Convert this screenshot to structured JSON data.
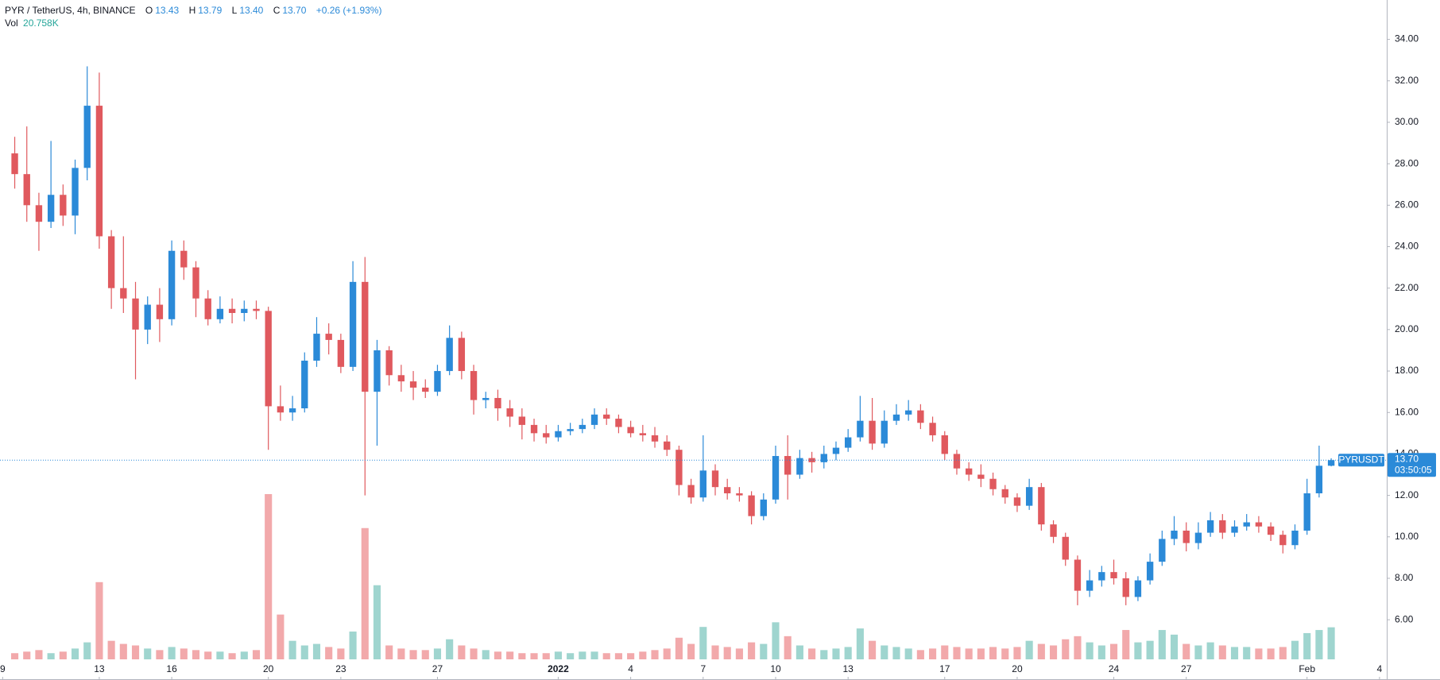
{
  "chart_data": {
    "type": "candlestick",
    "header": {
      "symbol": "PYR / TetherUS, 4h, BINANCE",
      "o_key": "O",
      "o": "13.43",
      "h_key": "H",
      "h": "13.79",
      "l_key": "L",
      "l": "13.40",
      "c_key": "C",
      "c": "13.70",
      "change": "+0.26 (+1.93%)",
      "vol_key": "Vol",
      "vol": "20.758K"
    },
    "price_label": {
      "name": "PYRUSDT",
      "price": "13.70",
      "countdown": "03:50:05"
    },
    "up_color": "#2b8ad8",
    "down_color": "#e0595e",
    "volume_up_color": "#9fd5cf",
    "volume_down_color": "#f2a9ab",
    "grid": false,
    "xlim": [
      -0.11,
      57.3
    ],
    "ylim": [
      4.09,
      35.9
    ],
    "xticks": [
      {
        "value": 0,
        "label": "9"
      },
      {
        "value": 4,
        "label": "13"
      },
      {
        "value": 7,
        "label": "16"
      },
      {
        "value": 11,
        "label": "20"
      },
      {
        "value": 14,
        "label": "23"
      },
      {
        "value": 18,
        "label": "27"
      },
      {
        "value": 23,
        "label": "2022"
      },
      {
        "value": 26,
        "label": "4"
      },
      {
        "value": 29,
        "label": "7"
      },
      {
        "value": 32,
        "label": "10"
      },
      {
        "value": 35,
        "label": "13"
      },
      {
        "value": 39,
        "label": "17"
      },
      {
        "value": 42,
        "label": "20"
      },
      {
        "value": 46,
        "label": "24"
      },
      {
        "value": 49,
        "label": "27"
      },
      {
        "value": 54,
        "label": "Feb"
      },
      {
        "value": 57,
        "label": "4"
      }
    ],
    "yticks": [
      {
        "value": 6,
        "label": "6.00"
      },
      {
        "value": 8,
        "label": "8.00"
      },
      {
        "value": 10,
        "label": "10.00"
      },
      {
        "value": 12,
        "label": "12.00"
      },
      {
        "value": 14,
        "label": "14.00"
      },
      {
        "value": 16,
        "label": "16.00"
      },
      {
        "value": 18,
        "label": "18.00"
      },
      {
        "value": 20,
        "label": "20.00"
      },
      {
        "value": 22,
        "label": "22.00"
      },
      {
        "value": 24,
        "label": "24.00"
      },
      {
        "value": 26,
        "label": "26.00"
      },
      {
        "value": 28,
        "label": "28.00"
      },
      {
        "value": 30,
        "label": "30.00"
      },
      {
        "value": 32,
        "label": "32.00"
      },
      {
        "value": 34,
        "label": "34.00"
      }
    ],
    "x": [
      0.5,
      1,
      1.5,
      2,
      2.5,
      3,
      3.5,
      4,
      4.5,
      5,
      5.5,
      6,
      6.5,
      7,
      7.5,
      8,
      8.5,
      9,
      9.5,
      10,
      10.5,
      11,
      11.5,
      12,
      12.5,
      13,
      13.5,
      14,
      14.5,
      15,
      15.5,
      16,
      16.5,
      17,
      17.5,
      18,
      18.5,
      19,
      19.5,
      20,
      20.5,
      21,
      21.5,
      22,
      22.5,
      23,
      23.5,
      24,
      24.5,
      25,
      25.5,
      26,
      26.5,
      27,
      27.5,
      28,
      28.5,
      29,
      29.5,
      30,
      30.5,
      31,
      31.5,
      32,
      32.5,
      33,
      33.5,
      34,
      34.5,
      35,
      35.5,
      36,
      36.5,
      37,
      37.5,
      38,
      38.5,
      39,
      39.5,
      40,
      40.5,
      41,
      41.5,
      42,
      42.5,
      43,
      43.5,
      44,
      44.5,
      45,
      45.5,
      46,
      46.5,
      47,
      47.5,
      48,
      48.5,
      49,
      49.5,
      50,
      50.5,
      51,
      51.5,
      52,
      52.5,
      53,
      53.5,
      54,
      54.5,
      55
    ],
    "open": [
      28.5,
      27.5,
      26,
      25.2,
      26.5,
      25.5,
      27.8,
      30.8,
      24.5,
      22,
      21.5,
      20,
      21.2,
      20.5,
      23.8,
      23,
      21.5,
      20.5,
      21,
      20.8,
      21,
      20.9,
      16.3,
      16,
      16.2,
      18.5,
      19.8,
      19.5,
      18.2,
      22.3,
      17,
      19,
      17.8,
      17.5,
      17.2,
      17,
      18,
      19.6,
      18,
      16.6,
      16.7,
      16.2,
      15.8,
      15.4,
      15,
      14.8,
      15.1,
      15.2,
      15.4,
      15.9,
      15.7,
      15.3,
      15,
      14.9,
      14.6,
      14.2,
      12.5,
      11.9,
      13.2,
      12.4,
      12.1,
      12,
      11,
      11.8,
      13.9,
      13,
      13.8,
      13.6,
      14,
      14.3,
      14.8,
      15.6,
      14.5,
      15.6,
      15.9,
      16.1,
      15.5,
      14.9,
      14,
      13.3,
      13,
      12.8,
      12.3,
      11.9,
      11.5,
      12.4,
      10.6,
      10,
      8.9,
      7.4,
      7.9,
      8.3,
      8,
      7.1,
      7.9,
      8.8,
      9.9,
      10.3,
      9.7,
      10.2,
      10.8,
      10.2,
      10.5,
      10.7,
      10.5,
      10.1,
      9.6,
      10.3,
      12.1,
      13.43
    ],
    "high": [
      29.3,
      29.8,
      26.6,
      29.1,
      27,
      28.2,
      32.7,
      32.4,
      24.8,
      24.5,
      22.3,
      21.6,
      22,
      24.3,
      24.3,
      23.3,
      21.9,
      21.6,
      21.5,
      21.4,
      21.4,
      21.1,
      17.3,
      16.8,
      18.9,
      20.6,
      20.3,
      19.8,
      23.3,
      23.5,
      19.5,
      19.2,
      18.3,
      18,
      17.6,
      18.3,
      20.2,
      19.9,
      18.3,
      17,
      17.1,
      16.6,
      16.2,
      15.7,
      15.4,
      15.4,
      15.5,
      15.7,
      16.2,
      16.2,
      15.9,
      15.6,
      15.4,
      15.3,
      14.9,
      14.4,
      12.8,
      14.9,
      13.5,
      12.8,
      12.4,
      12.2,
      12.1,
      14.4,
      14.9,
      14.2,
      14.1,
      14.4,
      14.6,
      15.2,
      16.8,
      16.7,
      16.1,
      16.4,
      16.6,
      16.4,
      15.8,
      15.1,
      14.2,
      13.6,
      13.5,
      13.1,
      12.5,
      12.1,
      12.8,
      12.6,
      10.8,
      10.2,
      9.1,
      8.4,
      8.6,
      8.9,
      8.3,
      8.1,
      9.2,
      10.3,
      11,
      10.7,
      10.7,
      11.2,
      11.1,
      10.8,
      11.1,
      11,
      10.7,
      10.3,
      10.6,
      12.8,
      14.4,
      13.79
    ],
    "low": [
      26.8,
      25.2,
      23.8,
      24.9,
      25,
      24.6,
      27.2,
      23.9,
      21,
      20.8,
      17.6,
      19.3,
      19.4,
      20.2,
      22.4,
      20.6,
      20.2,
      20.3,
      20.3,
      20.4,
      20.5,
      14.2,
      15.6,
      15.6,
      16,
      18.2,
      18.8,
      17.9,
      18,
      12,
      14.4,
      17.3,
      17,
      16.6,
      16.7,
      16.8,
      17.8,
      17.6,
      15.9,
      16.2,
      15.6,
      15.3,
      14.7,
      14.6,
      14.5,
      14.6,
      14.9,
      15,
      15.2,
      15.4,
      15,
      14.8,
      14.6,
      14.3,
      13.9,
      12,
      11.6,
      11.7,
      12,
      11.8,
      11.7,
      10.6,
      10.8,
      11.6,
      11.8,
      12.8,
      13.1,
      13.3,
      13.7,
      14.1,
      14.6,
      14.2,
      14.3,
      15.4,
      15.6,
      15.2,
      14.6,
      13.7,
      13,
      12.7,
      12.4,
      12,
      11.6,
      11.2,
      11.3,
      10.3,
      9.7,
      8.6,
      6.7,
      7.1,
      7.6,
      7.7,
      6.7,
      6.9,
      7.7,
      8.6,
      9.6,
      9.3,
      9.4,
      10,
      9.9,
      10,
      10.3,
      10.2,
      9.8,
      9.2,
      9.4,
      10.1,
      11.9,
      13.4
    ],
    "close": [
      27.5,
      26,
      25.2,
      26.5,
      25.5,
      27.8,
      30.8,
      24.5,
      22,
      21.5,
      20,
      21.2,
      20.5,
      23.8,
      23,
      21.5,
      20.5,
      21,
      20.8,
      21,
      20.9,
      16.3,
      16,
      16.2,
      18.5,
      19.8,
      19.5,
      18.2,
      22.3,
      17,
      19,
      17.8,
      17.5,
      17.2,
      17,
      18,
      19.6,
      18,
      16.6,
      16.7,
      16.2,
      15.8,
      15.4,
      15,
      14.8,
      15.1,
      15.2,
      15.4,
      15.9,
      15.7,
      15.3,
      15,
      14.9,
      14.6,
      14.2,
      12.5,
      11.9,
      13.2,
      12.4,
      12.1,
      12,
      11,
      11.8,
      13.9,
      13,
      13.8,
      13.6,
      14,
      14.3,
      14.8,
      15.6,
      14.5,
      15.6,
      15.9,
      16.1,
      15.5,
      14.9,
      14,
      13.3,
      13,
      12.8,
      12.3,
      11.9,
      11.5,
      12.4,
      10.6,
      10,
      8.9,
      7.4,
      7.9,
      8.3,
      8,
      7.1,
      7.9,
      8.8,
      9.9,
      10.3,
      9.7,
      10.2,
      10.8,
      10.2,
      10.5,
      10.7,
      10.5,
      10.1,
      9.6,
      10.3,
      12.1,
      13.43,
      13.7
    ],
    "volume": [
      4,
      5,
      6,
      4,
      5,
      7,
      11,
      50,
      12,
      10,
      9,
      7,
      6,
      8,
      7,
      6,
      5,
      5,
      4,
      5,
      6,
      107,
      29,
      12,
      9,
      10,
      8,
      7,
      18,
      85,
      48,
      9,
      7,
      6,
      6,
      7,
      13,
      9,
      7,
      6,
      5,
      5,
      4,
      4,
      4,
      5,
      4,
      5,
      5,
      4,
      4,
      4,
      5,
      6,
      7,
      14,
      10,
      21,
      9,
      8,
      7,
      11,
      10,
      24,
      15,
      9,
      7,
      6,
      7,
      8,
      20,
      12,
      9,
      8,
      7,
      6,
      7,
      9,
      8,
      7,
      7,
      8,
      7,
      8,
      12,
      10,
      9,
      13,
      15,
      11,
      9,
      10,
      19,
      11,
      12,
      19,
      16,
      10,
      9,
      11,
      9,
      8,
      8,
      7,
      7,
      8,
      12,
      17,
      19,
      20.758
    ]
  }
}
